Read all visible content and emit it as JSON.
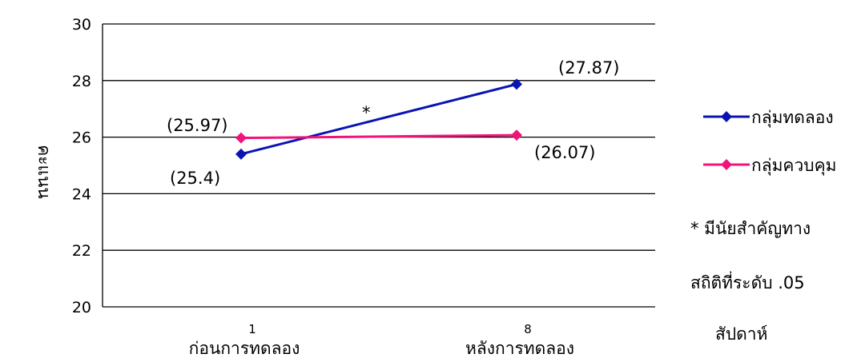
{
  "chart_data": {
    "type": "line",
    "title": "",
    "ylabel": "คะแนน",
    "xlabel": "สัปดาห์",
    "ylim": [
      20,
      30
    ],
    "yticks": [
      "20",
      "22",
      "24",
      "26",
      "28",
      "30"
    ],
    "grid": true,
    "legend_position": "right",
    "x": [
      {
        "num": "1",
        "label": "ก่อนการทดลอง"
      },
      {
        "num": "8",
        "label": "หลังการทดลอง"
      }
    ],
    "series": [
      {
        "name": "กลุ่มทดลอง",
        "color": "#0a14b4",
        "values": [
          25.4,
          27.87
        ],
        "labels": [
          "(25.4)",
          "(27.87)"
        ]
      },
      {
        "name": "กลุ่มควบคุม",
        "color": "#f0147a",
        "values": [
          25.97,
          26.07
        ],
        "labels": [
          "(25.97)",
          "(26.07)"
        ]
      }
    ],
    "annotations": {
      "significance_mark": "*",
      "note_line1": "* มีนัยสำคัญทาง",
      "note_line2": "สถิติที่ระดับ .05"
    }
  }
}
